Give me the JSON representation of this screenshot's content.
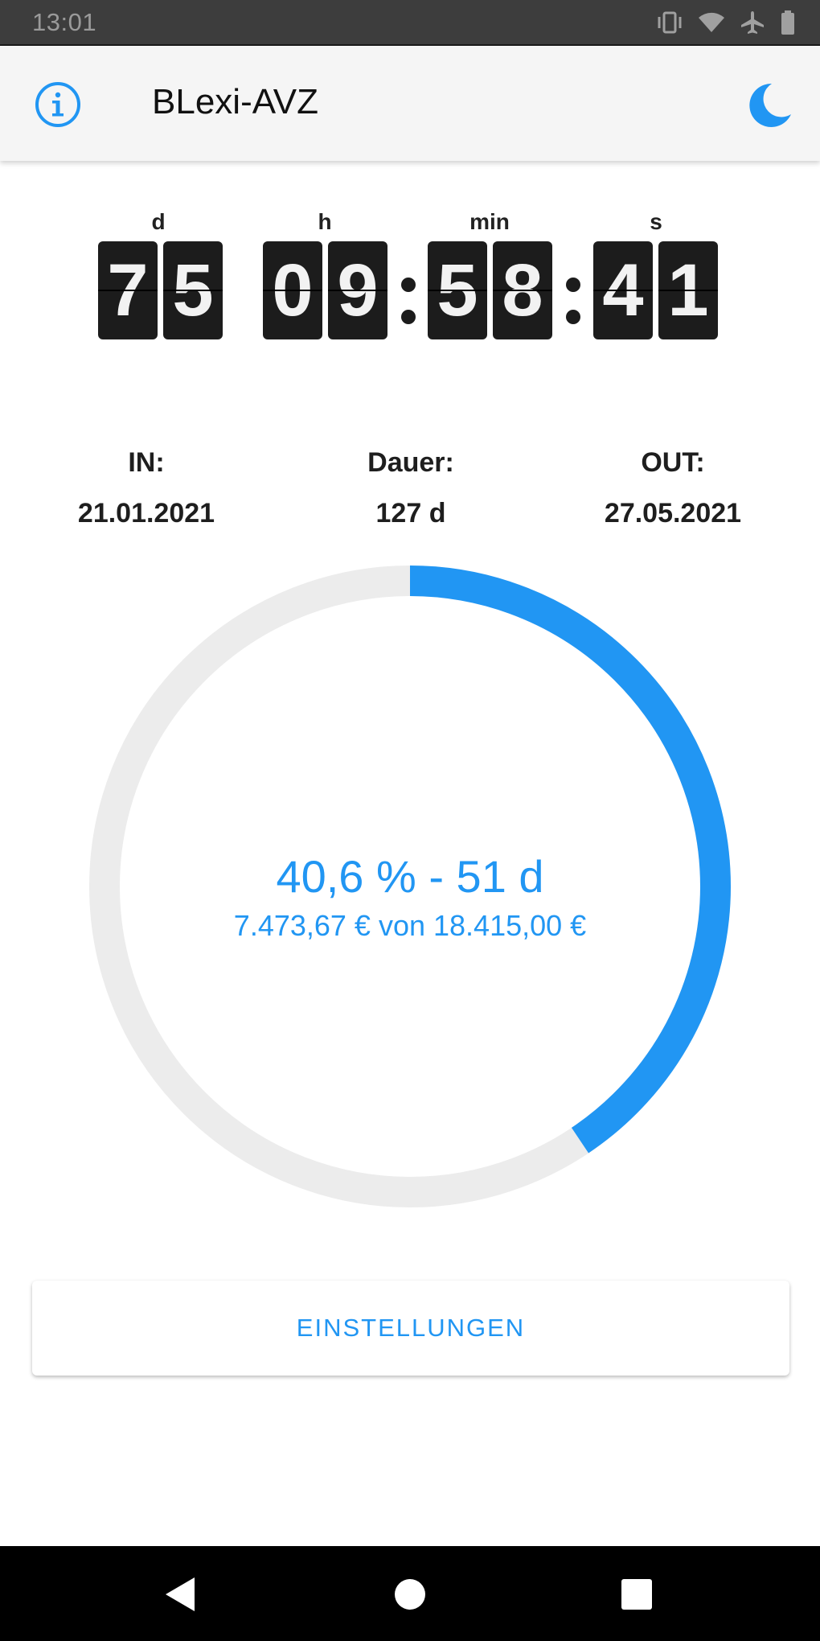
{
  "status_bar": {
    "time": "13:01",
    "icons": [
      "vibrate-icon",
      "wifi-icon",
      "airplane-icon",
      "battery-icon"
    ]
  },
  "app_bar": {
    "title": "BLexi-AVZ",
    "left_icon": "info-icon",
    "right_icon": "moon-icon",
    "accent_color": "#2196f3"
  },
  "countdown": {
    "labels": {
      "days": "d",
      "hours": "h",
      "minutes": "min",
      "seconds": "s"
    },
    "days": [
      "7",
      "5"
    ],
    "hours": [
      "0",
      "9"
    ],
    "minutes": [
      "5",
      "8"
    ],
    "seconds": [
      "4",
      "1"
    ]
  },
  "info": {
    "in_label": "IN:",
    "in_value": "21.01.2021",
    "duration_label": "Dauer:",
    "duration_value": "127 d",
    "out_label": "OUT:",
    "out_value": "27.05.2021"
  },
  "progress": {
    "fraction": 0.406,
    "headline": "40,6 % - 51 d",
    "amount": "7.473,67 € von 18.415,00 €",
    "track_color": "#ececec",
    "fill_color": "#2196f3"
  },
  "settings_button": {
    "label": "EINSTELLUNGEN"
  },
  "nav_bar": {
    "icons": [
      "back-icon",
      "home-icon",
      "recents-icon"
    ]
  }
}
